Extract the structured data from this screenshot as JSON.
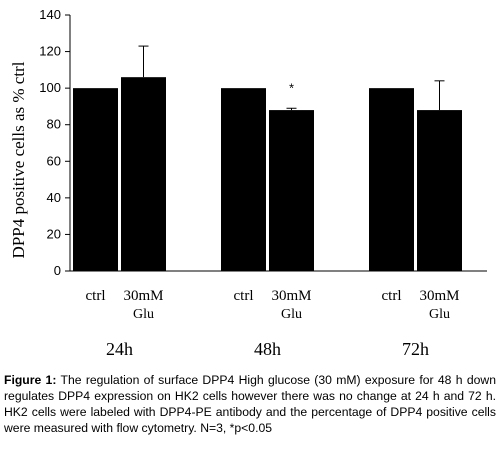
{
  "chart_data": {
    "type": "bar",
    "ylabel": "DPP4 positive cells as % ctrl",
    "ylim": [
      0,
      140
    ],
    "yticks": [
      0,
      20,
      40,
      60,
      80,
      100,
      120,
      140
    ],
    "grid": false,
    "groups": [
      {
        "label": "24h",
        "bars": [
          {
            "label": "ctrl",
            "sublabel": "",
            "value": 100,
            "error": 0,
            "annotation": ""
          },
          {
            "label": "30mM",
            "sublabel": "Glu",
            "value": 106,
            "error": 17,
            "annotation": ""
          }
        ]
      },
      {
        "label": "48h",
        "bars": [
          {
            "label": "ctrl",
            "sublabel": "",
            "value": 100,
            "error": 0,
            "annotation": ""
          },
          {
            "label": "30mM",
            "sublabel": "Glu",
            "value": 88,
            "error": 1,
            "annotation": "*"
          }
        ]
      },
      {
        "label": "72h",
        "bars": [
          {
            "label": "ctrl",
            "sublabel": "",
            "value": 100,
            "error": 0,
            "annotation": ""
          },
          {
            "label": "30mM",
            "sublabel": "Glu",
            "value": 88,
            "error": 16,
            "annotation": ""
          }
        ]
      }
    ],
    "bar_color": "#000000"
  },
  "caption": {
    "label": "Figure 1:",
    "text": " The regulation of surface DPP4 High glucose (30 mM) exposure for 48 h down regulates DPP4 expression on HK2 cells however there was no change at 24 h and 72 h. HK2 cells were labeled with DPP4-PE antibody and the percentage of DPP4 positive cells were measured with flow cytometry. N=3, *p<0.05"
  }
}
